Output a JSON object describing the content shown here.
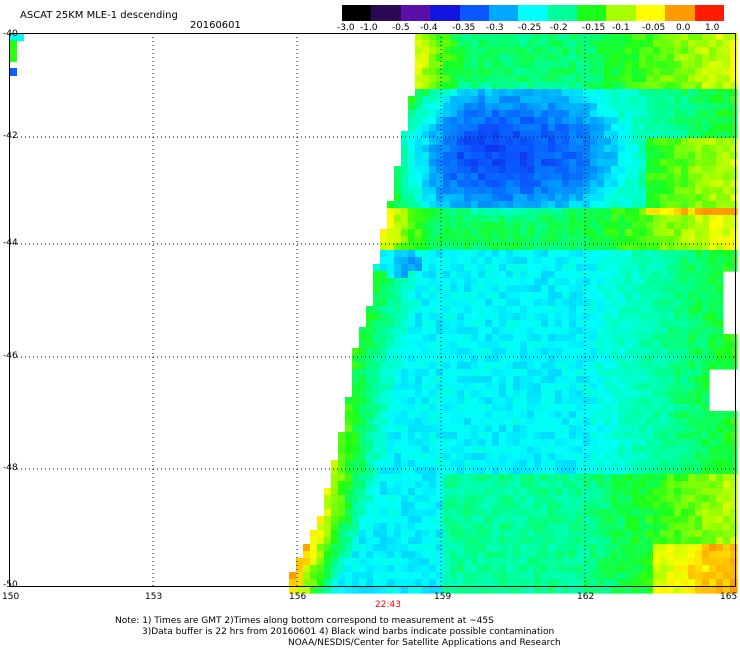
{
  "header": {
    "title": "ASCAT 25KM MLE-1 descending",
    "date": "20160601"
  },
  "colorbar": {
    "tick_labels": [
      "-3.0",
      "-1.0",
      "-0.5",
      "-0.4",
      "-0.35",
      "-0.3",
      "-0.25",
      "-0.2",
      "-0.15",
      "-0.1",
      "-0.05",
      "0.0",
      "1.0"
    ],
    "colors": [
      "#000000",
      "#2a0a55",
      "#5a10a8",
      "#1414e0",
      "#0a56ff",
      "#00a8ff",
      "#00ffff",
      "#00ff9a",
      "#1aff1a",
      "#a8ff00",
      "#ffff00",
      "#ff9a00",
      "#ff1a00"
    ]
  },
  "map": {
    "lat_ticks": [
      "-40",
      "-42",
      "-44",
      "-46",
      "-48",
      "-50"
    ],
    "lon_ticks": [
      "150",
      "153",
      "156",
      "159",
      "162",
      "165"
    ],
    "time_label": "22:43"
  },
  "footer": {
    "note1": "Note: 1) Times are GMT 2)Times along bottom correspond to measurement at ~45S",
    "note2": "3)Data buffer is 22 hrs from 20160601 4) Black wind barbs indicate possible contamination",
    "note3": "NOAA/NESDIS/Center for Satellite Applications and Research"
  }
}
